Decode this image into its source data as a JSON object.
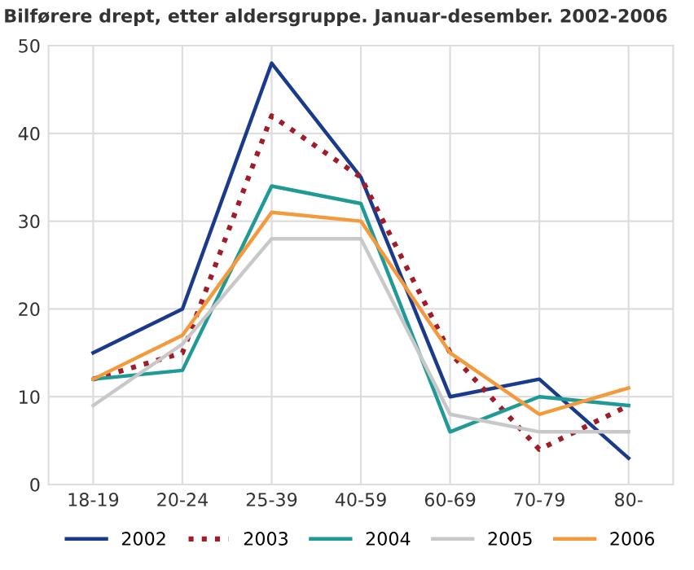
{
  "chart_data": {
    "type": "line",
    "title": "Bilførere drept, etter aldersgruppe. Januar-desember. 2002-2006",
    "categories": [
      "18-19",
      "20-24",
      "25-39",
      "40-59",
      "60-69",
      "70-79",
      "80-"
    ],
    "series": [
      {
        "name": "2002",
        "color": "#1a3a8c",
        "values": [
          15,
          20,
          48,
          35,
          10,
          12,
          3
        ]
      },
      {
        "name": "2003",
        "color": "#a01c28",
        "line_style": "dotted",
        "values": [
          12,
          15,
          42,
          35,
          15,
          4,
          9
        ]
      },
      {
        "name": "2004",
        "color": "#1f9a96",
        "values": [
          12,
          13,
          34,
          32,
          6,
          10,
          9
        ]
      },
      {
        "name": "2005",
        "color": "#c8c8c8",
        "values": [
          9,
          16,
          28,
          28,
          8,
          6,
          6
        ]
      },
      {
        "name": "2006",
        "color": "#f39a3c",
        "values": [
          12,
          17,
          31,
          30,
          15,
          8,
          11
        ]
      }
    ],
    "ylim": [
      0,
      50
    ],
    "yticks": [
      0,
      10,
      20,
      30,
      40,
      50
    ],
    "grid": true,
    "legend": "bottom",
    "line_style": "solid",
    "marker": "none"
  }
}
